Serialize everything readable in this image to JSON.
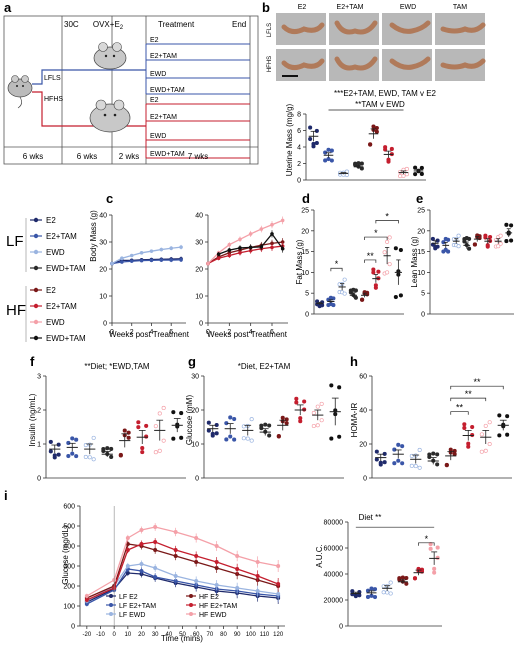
{
  "panel_letters": [
    "a",
    "b",
    "c",
    "d",
    "e",
    "f",
    "g",
    "h",
    "i"
  ],
  "colors": {
    "lf_e2": "#1f2a6b",
    "lf_e2tam": "#3a56a8",
    "lf_ewd": "#9ab4e0",
    "lf_ewdtam": "#2b2b2b",
    "hf_e2": "#7a1818",
    "hf_e2tam": "#c41e2e",
    "hf_ewd": "#f4a0a8",
    "hf_ewdtam": "#111111"
  },
  "panel_a": {
    "labels": {
      "c30": "30C",
      "ovx": "OVX+E",
      "ovx_sub": "2",
      "treatment": "Treatment",
      "end": "End",
      "lfls": "LFLS",
      "hfhs": "HFHS"
    },
    "groups": [
      "E2",
      "E2+TAM",
      "EWD",
      "EWD+TAM"
    ],
    "timeline": [
      "6 wks",
      "6 wks",
      "2 wks",
      "7 wks"
    ]
  },
  "panel_b": {
    "col_headers": [
      "E2",
      "E2+TAM",
      "EWD",
      "TAM"
    ],
    "row_labels": [
      "LFLS",
      "HFHS"
    ],
    "stats": [
      "***E2+TAM, EWD, TAM v E2",
      "**TAM v EWD"
    ],
    "ylabel": "Uterine Mass (mg/g)",
    "yticks": [
      "0",
      "2",
      "4",
      "6",
      "8"
    ]
  },
  "legend": {
    "lf_label": "LF",
    "hf_label": "HF",
    "items": [
      "E2",
      "E2+TAM",
      "EWD",
      "EWD+TAM"
    ]
  },
  "chart_data": [
    {
      "panel": "b",
      "type": "scatter",
      "ylabel": "Uterine Mass (mg/g)",
      "ylim": [
        0,
        8
      ],
      "groups": [
        "LF E2",
        "LF E2+TAM",
        "LF EWD",
        "LF EWD+TAM",
        "HF E2",
        "HF E2+TAM",
        "HF EWD",
        "HF EWD+TAM"
      ],
      "means": [
        5.3,
        3.0,
        0.8,
        1.6,
        5.6,
        3.1,
        0.9,
        1.1
      ],
      "sem": [
        0.6,
        0.3,
        0.1,
        0.2,
        0.6,
        0.4,
        0.2,
        0.2
      ]
    },
    {
      "panel": "c-LF",
      "type": "line",
      "xlabel": "Weeks post Treatment",
      "ylabel": "Body Mass (g)",
      "ylim": [
        0,
        40
      ],
      "x": [
        0,
        1,
        2,
        3,
        4,
        5,
        6,
        7
      ],
      "series": [
        {
          "name": "E2",
          "values": [
            22,
            23.2,
            23.2,
            23.4,
            23.5,
            23.6,
            23.7,
            23.8
          ]
        },
        {
          "name": "E2+TAM",
          "values": [
            22,
            22.6,
            22.9,
            23.1,
            23.2,
            23.3,
            23.3,
            23.4
          ]
        },
        {
          "name": "EWD",
          "values": [
            22,
            24.0,
            25.0,
            26.0,
            26.6,
            27.2,
            27.7,
            28.1
          ]
        }
      ]
    },
    {
      "panel": "c-HF",
      "type": "line",
      "xlabel": "Weeks post Treatment",
      "ylim": [
        0,
        40
      ],
      "x": [
        0,
        1,
        2,
        3,
        4,
        5,
        6,
        7
      ],
      "series": [
        {
          "name": "E2",
          "values": [
            22,
            24.5,
            26.0,
            27.0,
            28.0,
            28.8,
            29.5,
            30.0
          ]
        },
        {
          "name": "E2+TAM",
          "values": [
            22,
            24.0,
            25.0,
            26.0,
            26.8,
            27.5,
            28.0,
            28.5
          ]
        },
        {
          "name": "EWD",
          "values": [
            22,
            26.0,
            29.0,
            31.0,
            33.0,
            34.8,
            36.4,
            38.0
          ]
        },
        {
          "name": "EWD+TAM",
          "values": [
            null,
            25.5,
            27.0,
            27.8,
            28.0,
            28.2,
            33.0,
            27.5
          ]
        }
      ]
    },
    {
      "panel": "d",
      "type": "scatter",
      "ylabel": "Fat Mass (g)",
      "ylim": [
        0,
        25
      ],
      "groups": [
        "LF E2",
        "LF E2+TAM",
        "LF EWD",
        "LF EWD+TAM",
        "HF E2",
        "HF E2+TAM",
        "HF EWD",
        "HF EWD+TAM"
      ],
      "means": [
        2.5,
        3.0,
        6.5,
        4.5,
        4.5,
        8.5,
        14.0,
        10.0
      ],
      "sem": [
        0.3,
        0.4,
        0.8,
        0.6,
        0.5,
        1.0,
        2.0,
        3.0
      ],
      "annotations": [
        "*",
        "**",
        "*",
        "*"
      ]
    },
    {
      "panel": "e",
      "type": "scatter",
      "ylabel": "Lean Mass (g)",
      "ylim": [
        0,
        25
      ],
      "groups": [
        "LF E2",
        "LF E2+TAM",
        "LF EWD",
        "LF EWD+TAM",
        "HF E2",
        "HF E2+TAM",
        "HF EWD",
        "HF EWD+TAM"
      ],
      "means": [
        17.0,
        16.5,
        17.5,
        16.5,
        18.0,
        17.5,
        17.5,
        19.5
      ],
      "sem": [
        0.6,
        0.7,
        0.6,
        0.8,
        0.6,
        0.6,
        0.6,
        1.0
      ]
    },
    {
      "panel": "f",
      "type": "scatter",
      "ylabel": "Insulin (ng/mL)",
      "ylim": [
        0,
        3
      ],
      "title": "**Diet; *EWD,TAM",
      "groups": [
        "LF E2",
        "LF E2+TAM",
        "LF EWD",
        "LF EWD+TAM",
        "HF E2",
        "HF E2+TAM",
        "HF EWD",
        "HF EWD+TAM"
      ],
      "means": [
        0.85,
        0.9,
        0.85,
        0.7,
        1.1,
        1.2,
        1.4,
        1.55
      ],
      "sem": [
        0.12,
        0.12,
        0.15,
        0.08,
        0.2,
        0.2,
        0.3,
        0.2
      ]
    },
    {
      "panel": "g",
      "type": "scatter",
      "ylabel": "Glucose (mM)",
      "ylim": [
        0,
        30
      ],
      "title": "*Diet, E2+TAM",
      "groups": [
        "LF E2",
        "LF E2+TAM",
        "LF EWD",
        "LF EWD+TAM",
        "HF E2",
        "HF E2+TAM",
        "HF EWD",
        "HF EWD+TAM"
      ],
      "means": [
        14.5,
        14.5,
        14.0,
        13.5,
        15.5,
        20.0,
        18.5,
        19.5
      ],
      "sem": [
        1.0,
        1.5,
        1.5,
        1.0,
        1.5,
        1.5,
        1.5,
        4.0
      ]
    },
    {
      "panel": "h",
      "type": "scatter",
      "ylabel": "HOMA-IR",
      "ylim": [
        0,
        60
      ],
      "groups": [
        "LF E2",
        "LF E2+TAM",
        "LF EWD",
        "LF EWD+TAM",
        "HF E2",
        "HF E2+TAM",
        "HF EWD",
        "HF EWD+TAM"
      ],
      "means": [
        12.0,
        14.0,
        11.0,
        10.0,
        13.0,
        25.0,
        24.0,
        31.0
      ],
      "sem": [
        2.0,
        2.5,
        2.5,
        2.0,
        2.5,
        3.0,
        4.0,
        3.0
      ],
      "annotations": [
        "**",
        "**",
        "**"
      ]
    },
    {
      "panel": "i-gtt",
      "type": "line",
      "xlabel": "Time (mins)",
      "ylabel": "Glucose (mg/dL)",
      "ylim": [
        0,
        600
      ],
      "x": [
        -20,
        0,
        10,
        20,
        30,
        45,
        60,
        75,
        90,
        105,
        120
      ],
      "series": [
        {
          "name": "LF E2",
          "values": [
            120,
            185,
            265,
            260,
            240,
            215,
            195,
            175,
            165,
            150,
            140
          ]
        },
        {
          "name": "LF E2+TAM",
          "values": [
            110,
            180,
            285,
            275,
            245,
            225,
            205,
            185,
            175,
            160,
            150
          ]
        },
        {
          "name": "LF EWD",
          "values": [
            125,
            200,
            300,
            310,
            290,
            250,
            225,
            205,
            190,
            175,
            160
          ]
        },
        {
          "name": "HF E2",
          "values": [
            140,
            200,
            410,
            400,
            380,
            350,
            320,
            290,
            260,
            230,
            200
          ]
        },
        {
          "name": "HF E2+TAM",
          "values": [
            130,
            190,
            380,
            410,
            420,
            380,
            350,
            320,
            285,
            250,
            210
          ]
        },
        {
          "name": "HF EWD",
          "values": [
            150,
            230,
            440,
            480,
            495,
            470,
            440,
            400,
            350,
            320,
            300
          ]
        }
      ]
    },
    {
      "panel": "i-auc",
      "type": "scatter",
      "ylabel": "A.U.C.",
      "ylim": [
        0,
        80000
      ],
      "title": "Diet **",
      "groups": [
        "LF E2",
        "LF E2+TAM",
        "LF EWD",
        "HF E2",
        "HF E2+TAM",
        "HF EWD"
      ],
      "means": [
        25000,
        25500,
        29000,
        34000,
        41000,
        52000
      ],
      "sem": [
        1000,
        1500,
        2000,
        1500,
        2000,
        5000
      ],
      "annotations": [
        "*"
      ]
    }
  ],
  "axis_text": {
    "c_ylabel": "Body Mass (g)",
    "c_xlabel": "Weeks post Treatment",
    "c_yticks": [
      "0",
      "10",
      "20",
      "30",
      "40"
    ],
    "c_xticks": [
      "0",
      "2",
      "4",
      "6"
    ],
    "d_ylabel": "Fat Mass (g)",
    "d_yticks": [
      "0",
      "5",
      "10",
      "15",
      "20",
      "25"
    ],
    "e_ylabel": "Lean Mass (g)",
    "e_yticks": [
      "0",
      "5",
      "10",
      "15",
      "20",
      "25"
    ],
    "f_ylabel": "Insulin (ng/mL)",
    "f_yticks": [
      "0",
      "1",
      "2",
      "3"
    ],
    "f_stats": "**Diet; *EWD,TAM",
    "g_ylabel": "Glucose (mM)",
    "g_yticks": [
      "0",
      "10",
      "20",
      "30"
    ],
    "g_stats": "*Diet, E2+TAM",
    "h_ylabel": "HOMA-IR",
    "h_yticks": [
      "0",
      "20",
      "40",
      "60"
    ],
    "i_ylabel": "Glucose (mg/dL)",
    "i_xlabel": "Time (mins)",
    "i_yticks": [
      "0",
      "100",
      "200",
      "300",
      "400",
      "500",
      "600"
    ],
    "i_xticks": [
      "-20",
      "-10",
      "0",
      "10",
      "20",
      "30",
      "40",
      "50",
      "60",
      "70",
      "80",
      "90",
      "100",
      "110",
      "120"
    ],
    "i_legend": [
      "LF E2",
      "LF E2+TAM",
      "LF EWD",
      "HF E2",
      "HF E2+TAM",
      "HF EWD"
    ],
    "auc_ylabel": "A.U.C.",
    "auc_yticks": [
      "0",
      "20000",
      "40000",
      "60000",
      "80000"
    ],
    "auc_stats": "Diet **"
  }
}
